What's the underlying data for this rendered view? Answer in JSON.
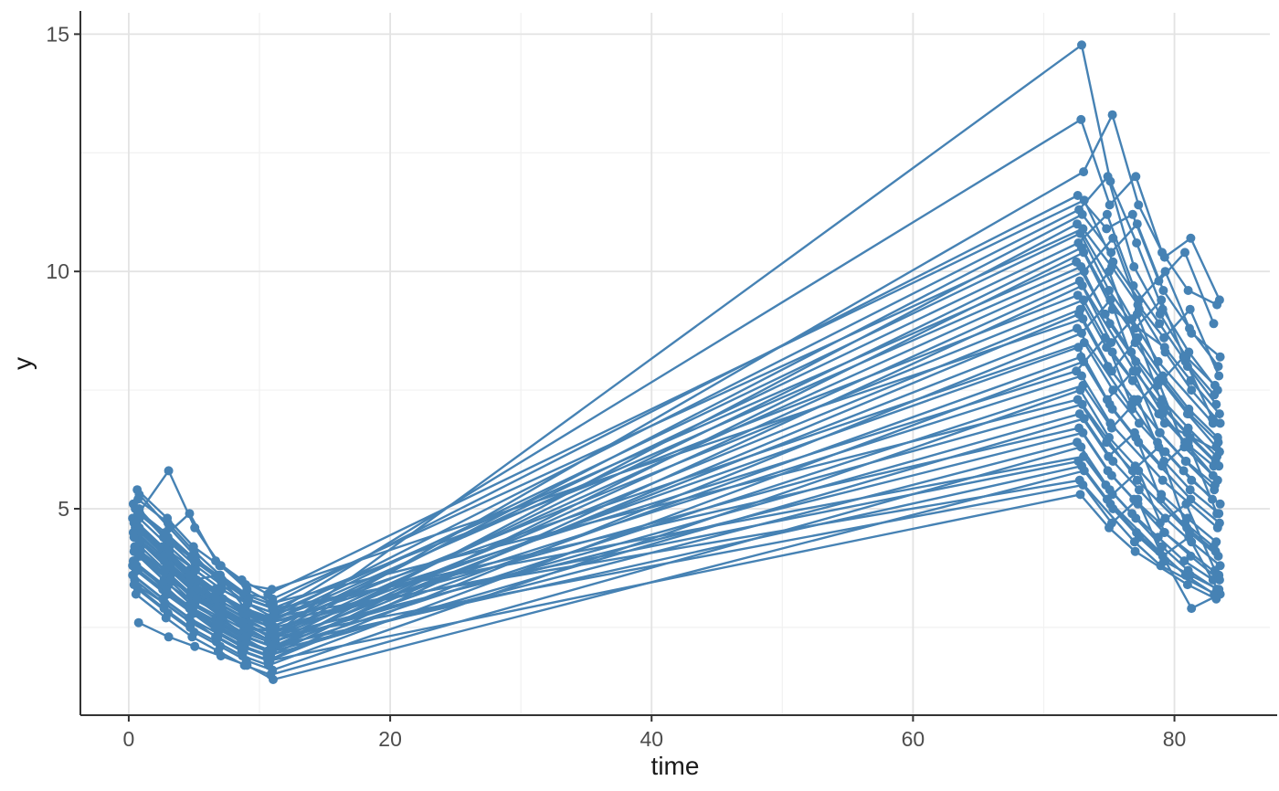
{
  "colors": {
    "series": "#4682B4",
    "grid_major": "#e3e3e3",
    "grid_minor": "#f1f1f1",
    "axis_line": "#333333",
    "tick_label": "#4d4d4d",
    "background": "#ffffff"
  },
  "chart_data": {
    "type": "line",
    "title": "",
    "xlabel": "time",
    "ylabel": "y",
    "x_ticks": [
      0,
      20,
      40,
      60,
      80
    ],
    "x_minor": [
      10,
      30,
      50,
      70
    ],
    "y_ticks": [
      5,
      10,
      15
    ],
    "y_minor": [
      2.5,
      7.5,
      12.5
    ],
    "xlim": [
      -3.7,
      87.3
    ],
    "ylim": [
      0.65,
      15.45
    ],
    "grid": true,
    "legend": "none",
    "base_times": [
      0.6,
      2.9,
      4.9,
      6.9,
      8.9,
      10.9,
      72.8,
      75.0,
      77.0,
      79.0,
      81.0,
      83.2
    ],
    "series": [
      {
        "o": [
          -0.1,
          0.1
        ],
        "v": [
          4.4,
          3.9,
          3.3,
          2.9,
          2.6,
          2.3,
          14.77,
          11.9,
          10.6,
          9.2,
          8.3,
          7.5
        ]
      },
      {
        "o": [
          0.2,
          0.05
        ],
        "v": [
          5.3,
          4.6,
          4.0,
          3.4,
          3.0,
          2.8,
          13.2,
          11.4,
          12.0,
          10.4,
          9.6,
          9.3
        ]
      },
      {
        "o": [
          -0.2,
          0.25
        ],
        "v": [
          4.1,
          3.5,
          3.0,
          2.7,
          2.4,
          2.2,
          12.1,
          13.3,
          11.4,
          10.3,
          10.7,
          9.4
        ]
      },
      {
        "o": [
          0.15,
          -0.2
        ],
        "v": [
          4.9,
          5.8,
          4.6,
          3.8,
          3.3,
          3.0,
          11.6,
          10.9,
          11.2,
          9.8,
          10.4,
          8.9
        ]
      },
      {
        "o": [
          -0.25,
          0.3
        ],
        "v": [
          5.1,
          4.4,
          4.9,
          3.9,
          3.5,
          3.2,
          11.5,
          10.2,
          9.4,
          10.0,
          8.7,
          8.2
        ]
      },
      {
        "o": [
          0.0,
          -0.1
        ],
        "v": [
          4.6,
          4.0,
          3.5,
          3.6,
          2.9,
          2.7,
          11.3,
          12.0,
          10.1,
          9.1,
          8.2,
          7.6
        ]
      },
      {
        "o": [
          0.25,
          0.15
        ],
        "v": [
          4.3,
          3.8,
          3.2,
          2.8,
          2.5,
          2.4,
          11.2,
          10.4,
          11.0,
          9.6,
          8.8,
          8.0
        ]
      },
      {
        "o": [
          -0.15,
          -0.25
        ],
        "v": [
          3.9,
          3.3,
          2.9,
          2.5,
          2.2,
          2.0,
          11.0,
          null,
          9.0,
          8.1,
          null,
          6.8
        ]
      },
      {
        "o": [
          0.1,
          0.2
        ],
        "v": [
          5.2,
          4.7,
          4.1,
          3.6,
          3.2,
          3.1,
          10.9,
          10.1,
          9.3,
          8.6,
          9.2,
          7.8
        ]
      },
      {
        "o": [
          -0.3,
          0.0
        ],
        "v": [
          4.8,
          4.2,
          3.7,
          3.3,
          2.9,
          2.6,
          10.8,
          9.6,
          8.8,
          9.4,
          8.0,
          7.2
        ]
      },
      {
        "o": [
          0.05,
          -0.15
        ],
        "v": [
          4.5,
          3.9,
          3.4,
          3.0,
          2.7,
          2.5,
          10.6,
          11.2,
          9.7,
          8.9,
          8.1,
          7.4
        ]
      },
      {
        "o": [
          0.3,
          0.1
        ],
        "v": [
          4.2,
          3.6,
          3.1,
          2.8,
          2.4,
          2.2,
          10.5,
          9.4,
          8.6,
          7.8,
          7.1,
          6.5
        ]
      },
      {
        "o": [
          -0.05,
          0.25
        ],
        "v": [
          3.7,
          3.2,
          2.8,
          2.4,
          2.1,
          1.9,
          10.4,
          9.2,
          null,
          8.4,
          7.7,
          7.0
        ]
      },
      {
        "o": [
          0.2,
          -0.3
        ],
        "v": [
          5.0,
          4.3,
          3.8,
          3.4,
          3.0,
          2.8,
          10.2,
          9.1,
          8.3,
          7.6,
          8.2,
          6.9
        ]
      },
      {
        "o": [
          -0.2,
          0.05
        ],
        "v": [
          4.7,
          4.1,
          3.6,
          3.1,
          2.8,
          2.6,
          10.1,
          8.9,
          8.1,
          7.3,
          6.7,
          6.1
        ]
      },
      {
        "o": [
          0.0,
          0.3
        ],
        "v": [
          4.4,
          3.8,
          3.3,
          2.9,
          2.6,
          2.3,
          10.0,
          10.7,
          9.2,
          8.3,
          7.5,
          6.8
        ]
      },
      {
        "o": [
          0.15,
          -0.05
        ],
        "v": [
          4.0,
          3.4,
          3.0,
          2.6,
          2.3,
          2.1,
          9.8,
          null,
          7.9,
          7.2,
          6.6,
          6.0
        ]
      },
      {
        "o": [
          -0.25,
          0.15
        ],
        "v": [
          3.6,
          3.1,
          2.7,
          2.3,
          2.0,
          1.8,
          9.7,
          8.5,
          9.1,
          7.7,
          7.0,
          6.4
        ]
      },
      {
        "o": [
          0.1,
          -0.2
        ],
        "v": [
          4.9,
          4.4,
          3.9,
          3.5,
          3.1,
          2.9,
          9.5,
          8.4,
          7.7,
          7.0,
          6.4,
          5.9
        ]
      },
      {
        "o": [
          -0.1,
          0.25
        ],
        "v": [
          4.6,
          4.0,
          3.5,
          3.2,
          2.8,
          2.5,
          9.4,
          8.3,
          null,
          6.8,
          null,
          6.2
        ]
      },
      {
        "o": [
          0.25,
          0.0
        ],
        "v": [
          4.3,
          3.7,
          3.2,
          2.9,
          2.5,
          2.3,
          9.2,
          10.0,
          8.5,
          7.7,
          7.0,
          6.3
        ]
      },
      {
        "o": [
          -0.3,
          -0.1
        ],
        "v": [
          3.8,
          3.3,
          null,
          2.5,
          2.2,
          2.0,
          9.1,
          8.0,
          7.3,
          6.6,
          6.0,
          5.5
        ]
      },
      {
        "o": [
          0.05,
          0.2
        ],
        "v": [
          5.4,
          4.8,
          4.2,
          3.8,
          3.4,
          3.3,
          9.0,
          7.9,
          8.6,
          7.1,
          6.5,
          5.9
        ]
      },
      {
        "o": [
          0.3,
          -0.25
        ],
        "v": [
          4.1,
          3.5,
          3.1,
          2.7,
          2.4,
          2.2,
          8.8,
          null,
          7.1,
          7.7,
          6.3,
          5.7
        ]
      },
      {
        "o": [
          -0.15,
          0.1
        ],
        "v": [
          3.5,
          3.0,
          2.6,
          2.3,
          2.0,
          1.8,
          8.7,
          9.4,
          7.9,
          7.0,
          6.3,
          5.6
        ]
      },
      {
        "o": [
          0.2,
          0.3
        ],
        "v": [
          4.8,
          4.2,
          3.7,
          3.3,
          3.0,
          2.7,
          8.5,
          7.5,
          6.8,
          6.2,
          5.6,
          5.1
        ]
      },
      {
        "o": [
          -0.05,
          -0.15
        ],
        "v": [
          4.4,
          3.9,
          3.4,
          3.0,
          2.7,
          2.4,
          8.4,
          7.3,
          7.9,
          6.6,
          6.0,
          5.4
        ]
      },
      {
        "o": [
          0.15,
          0.05
        ],
        "v": [
          4.0,
          3.5,
          3.0,
          2.7,
          2.3,
          2.1,
          8.2,
          7.2,
          6.5,
          5.9,
          6.4,
          4.9
        ]
      },
      {
        "o": [
          -0.2,
          0.25
        ],
        "v": [
          3.4,
          2.9,
          2.5,
          2.2,
          1.9,
          1.7,
          8.1,
          7.1,
          6.4,
          null,
          5.2,
          4.7
        ]
      },
      {
        "o": [
          0.0,
          -0.3
        ],
        "v": [
          4.7,
          4.1,
          3.6,
          3.2,
          2.9,
          2.6,
          7.9,
          8.6,
          7.2,
          6.4,
          5.8,
          5.2
        ]
      },
      {
        "o": [
          0.25,
          0.1
        ],
        "v": [
          4.3,
          3.8,
          3.3,
          2.9,
          2.6,
          2.4,
          7.8,
          6.8,
          null,
          5.6,
          null,
          4.6
        ]
      },
      {
        "o": [
          -0.25,
          0.2
        ],
        "v": [
          3.9,
          3.4,
          2.9,
          2.6,
          2.3,
          2.0,
          7.6,
          6.7,
          7.3,
          6.0,
          5.4,
          4.9
        ]
      },
      {
        "o": [
          0.1,
          0.0
        ],
        "v": [
          3.3,
          2.8,
          2.4,
          2.1,
          1.8,
          1.6,
          7.5,
          6.5,
          5.9,
          5.3,
          4.8,
          4.3
        ]
      },
      {
        "o": [
          -0.1,
          -0.2
        ],
        "v": [
          5.0,
          4.5,
          4.0,
          3.6,
          3.2,
          3.0,
          7.3,
          6.4,
          5.8,
          6.3,
          4.7,
          4.2
        ]
      },
      {
        "o": [
          0.3,
          0.15
        ],
        "v": [
          4.5,
          4.0,
          3.5,
          3.1,
          2.8,
          2.5,
          7.2,
          null,
          5.6,
          null,
          4.5,
          4.0
        ]
      },
      {
        "o": [
          0.05,
          -0.05
        ],
        "v": [
          4.1,
          3.6,
          3.1,
          2.8,
          2.5,
          2.2,
          7.0,
          6.1,
          6.6,
          5.2,
          4.6,
          4.1
        ]
      },
      {
        "o": [
          -0.3,
          0.3
        ],
        "v": [
          3.6,
          3.1,
          2.7,
          null,
          2.1,
          1.9,
          6.9,
          6.0,
          5.4,
          4.8,
          4.3,
          3.8
        ]
      },
      {
        "o": [
          0.2,
          -0.1
        ],
        "v": [
          4.6,
          4.1,
          3.7,
          3.3,
          3.0,
          2.8,
          6.7,
          5.8,
          5.2,
          4.7,
          5.1,
          3.7
        ]
      },
      {
        "o": [
          -0.15,
          0.2
        ],
        "v": [
          4.2,
          3.7,
          3.2,
          2.9,
          2.6,
          2.3,
          6.6,
          5.7,
          5.1,
          4.5,
          null,
          3.6
        ]
      },
      {
        "o": [
          0.1,
          -0.25
        ],
        "v": [
          3.7,
          3.2,
          2.8,
          2.5,
          2.2,
          2.0,
          6.4,
          5.5,
          4.9,
          4.4,
          3.9,
          3.5
        ]
      },
      {
        "o": [
          -0.05,
          0.05
        ],
        "v": [
          3.2,
          2.7,
          2.3,
          2.0,
          1.7,
          1.5,
          6.3,
          5.4,
          4.8,
          4.2,
          3.7,
          3.3
        ]
      },
      {
        "o": [
          0.25,
          0.25
        ],
        "v": [
          4.9,
          4.3,
          3.9,
          3.5,
          3.1,
          2.9,
          6.1,
          5.3,
          5.8,
          4.5,
          4.0,
          3.5
        ]
      },
      {
        "o": [
          -0.2,
          -0.15
        ],
        "v": [
          4.4,
          3.9,
          3.5,
          3.1,
          2.8,
          2.6,
          6.0,
          5.2,
          null,
          4.1,
          3.6,
          3.2
        ]
      },
      {
        "o": [
          0.0,
          0.1
        ],
        "v": [
          3.8,
          3.3,
          2.9,
          2.6,
          2.3,
          2.1,
          5.9,
          5.1,
          4.5,
          4.0,
          4.4,
          3.3
        ]
      },
      {
        "o": [
          0.15,
          0.3
        ],
        "v": [
          2.6,
          2.3,
          2.1,
          1.9,
          1.7,
          1.4,
          5.8,
          5.0,
          4.4,
          3.9,
          2.9,
          3.2
        ]
      },
      {
        "o": [
          -0.25,
          -0.05
        ],
        "v": [
          4.5,
          4.0,
          3.6,
          3.2,
          2.9,
          2.7,
          5.6,
          null,
          4.3,
          3.8,
          null,
          3.2
        ]
      },
      {
        "o": [
          0.3,
          0.2
        ],
        "v": [
          4.0,
          3.5,
          3.1,
          2.8,
          2.5,
          2.3,
          5.5,
          4.7,
          5.2,
          3.9,
          3.6,
          3.3
        ]
      },
      {
        "o": [
          -0.1,
          0.0
        ],
        "v": [
          3.4,
          3.0,
          2.6,
          2.3,
          2.0,
          1.8,
          5.3,
          4.6,
          4.1,
          null,
          3.4,
          3.1
        ]
      }
    ]
  }
}
